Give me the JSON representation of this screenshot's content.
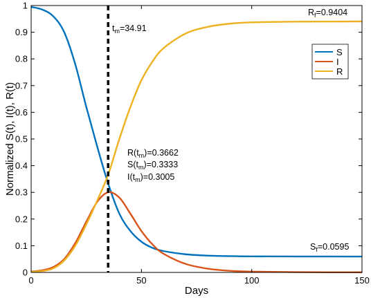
{
  "chart_data": {
    "type": "line",
    "xlabel": "Days",
    "ylabel": "Normalized S(t), I(t), R(t)",
    "xlim": [
      0,
      150
    ],
    "ylim": [
      0,
      1
    ],
    "x_ticks": [
      0,
      50,
      100,
      150
    ],
    "y_ticks": [
      0,
      0.1,
      0.2,
      0.3,
      0.4,
      0.5,
      0.6,
      0.7,
      0.8,
      0.9,
      1
    ],
    "grid": false,
    "legend_position": "top-right",
    "series": [
      {
        "name": "S",
        "color": "#0072BD",
        "x": [
          0,
          5,
          10,
          15,
          20,
          25,
          30,
          34.91,
          40,
          45,
          50,
          55,
          60,
          70,
          80,
          90,
          100,
          120,
          150
        ],
        "y": [
          0.995,
          0.985,
          0.96,
          0.9,
          0.78,
          0.62,
          0.47,
          0.3333,
          0.22,
          0.155,
          0.115,
          0.092,
          0.08,
          0.068,
          0.063,
          0.061,
          0.06,
          0.0598,
          0.0595
        ]
      },
      {
        "name": "I",
        "color": "#D95319",
        "x": [
          0,
          5,
          10,
          15,
          20,
          25,
          30,
          34.91,
          40,
          45,
          50,
          55,
          60,
          70,
          80,
          90,
          100,
          120,
          150
        ],
        "y": [
          0.003,
          0.008,
          0.02,
          0.05,
          0.11,
          0.19,
          0.265,
          0.3005,
          0.28,
          0.22,
          0.155,
          0.105,
          0.07,
          0.032,
          0.014,
          0.006,
          0.003,
          0.001,
          0.0003
        ]
      },
      {
        "name": "R",
        "color": "#EDB120",
        "x": [
          0,
          5,
          10,
          15,
          20,
          25,
          30,
          34.91,
          40,
          45,
          50,
          55,
          60,
          70,
          80,
          90,
          100,
          120,
          150
        ],
        "y": [
          0.002,
          0.005,
          0.015,
          0.045,
          0.1,
          0.18,
          0.27,
          0.3662,
          0.5,
          0.62,
          0.72,
          0.79,
          0.84,
          0.895,
          0.92,
          0.932,
          0.937,
          0.9395,
          0.9404
        ]
      }
    ],
    "vline": {
      "x": 34.91,
      "label": "34.91"
    },
    "annotations": {
      "tm": "34.91",
      "rf": "0.9404",
      "sf": "0.0595",
      "r_tm": "0.3662",
      "s_tm": "0.3333",
      "i_tm": "0.3005"
    }
  }
}
